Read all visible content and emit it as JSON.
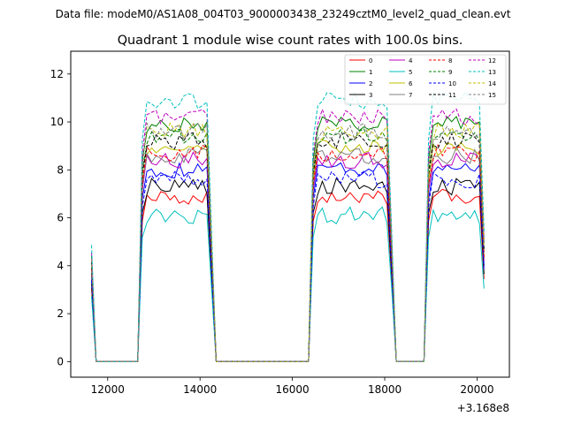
{
  "figure": {
    "suptitle": "Data file: modeM0/AS1A08_004T03_9000003438_23249cztM0_level2_quad_clean.evt",
    "x_offset_label": "+3.168e8"
  },
  "chart_data": {
    "type": "line",
    "title": "Quadrant 1 module wise count rates with 100.0s bins.",
    "xlabel": "",
    "ylabel": "",
    "x_offset": 316800000,
    "xlim": [
      11200,
      20700
    ],
    "ylim": [
      -0.65,
      12.95
    ],
    "xticks": [
      12000,
      14000,
      16000,
      18000,
      20000
    ],
    "xtick_labels": [
      "12000",
      "14000",
      "16000",
      "18000",
      "20000"
    ],
    "yticks": [
      0,
      2,
      4,
      6,
      8,
      10,
      12
    ],
    "ytick_labels": [
      "0",
      "2",
      "4",
      "6",
      "8",
      "10",
      "12"
    ],
    "legend_position": "top-right",
    "legend_ncol": 4,
    "series": [
      {
        "name": "0",
        "color": "#ff0000",
        "dash": "solid",
        "level": 6.9
      },
      {
        "name": "1",
        "color": "#008000",
        "dash": "solid",
        "level": 9.9
      },
      {
        "name": "2",
        "color": "#0000ff",
        "dash": "solid",
        "level": 8.0
      },
      {
        "name": "3",
        "color": "#000000",
        "dash": "solid",
        "level": 7.3
      },
      {
        "name": "4",
        "color": "#bf00bf",
        "dash": "solid",
        "level": 8.4
      },
      {
        "name": "5",
        "color": "#00bfbf",
        "dash": "solid",
        "level": 6.1
      },
      {
        "name": "6",
        "color": "#bfbf00",
        "dash": "solid",
        "level": 8.9
      },
      {
        "name": "7",
        "color": "#808080",
        "dash": "solid",
        "level": 8.6
      },
      {
        "name": "8",
        "color": "#ff0000",
        "dash": "dashed",
        "level": 8.7
      },
      {
        "name": "9",
        "color": "#008000",
        "dash": "dashed",
        "level": 9.4
      },
      {
        "name": "10",
        "color": "#0000ff",
        "dash": "dashed",
        "level": 7.6
      },
      {
        "name": "11",
        "color": "#000000",
        "dash": "dashed",
        "level": 9.2
      },
      {
        "name": "12",
        "color": "#bf00bf",
        "dash": "dashed",
        "level": 10.2
      },
      {
        "name": "13",
        "color": "#00bfbf",
        "dash": "dashed",
        "level": 10.9
      },
      {
        "name": "14",
        "color": "#bfbf00",
        "dash": "dashed",
        "level": 9.6
      },
      {
        "name": "15",
        "color": "#808080",
        "dash": "dashed",
        "level": 9.6
      }
    ],
    "segments": [
      {
        "start": 11650,
        "end": 11700,
        "start_value_scale": 0.72
      },
      {
        "start": 12750,
        "end": 14250
      },
      {
        "start": 16450,
        "end": 18150
      },
      {
        "start": 18950,
        "end": 20150
      }
    ],
    "bin_width": 100,
    "time_range": [
      11650,
      20150
    ]
  }
}
